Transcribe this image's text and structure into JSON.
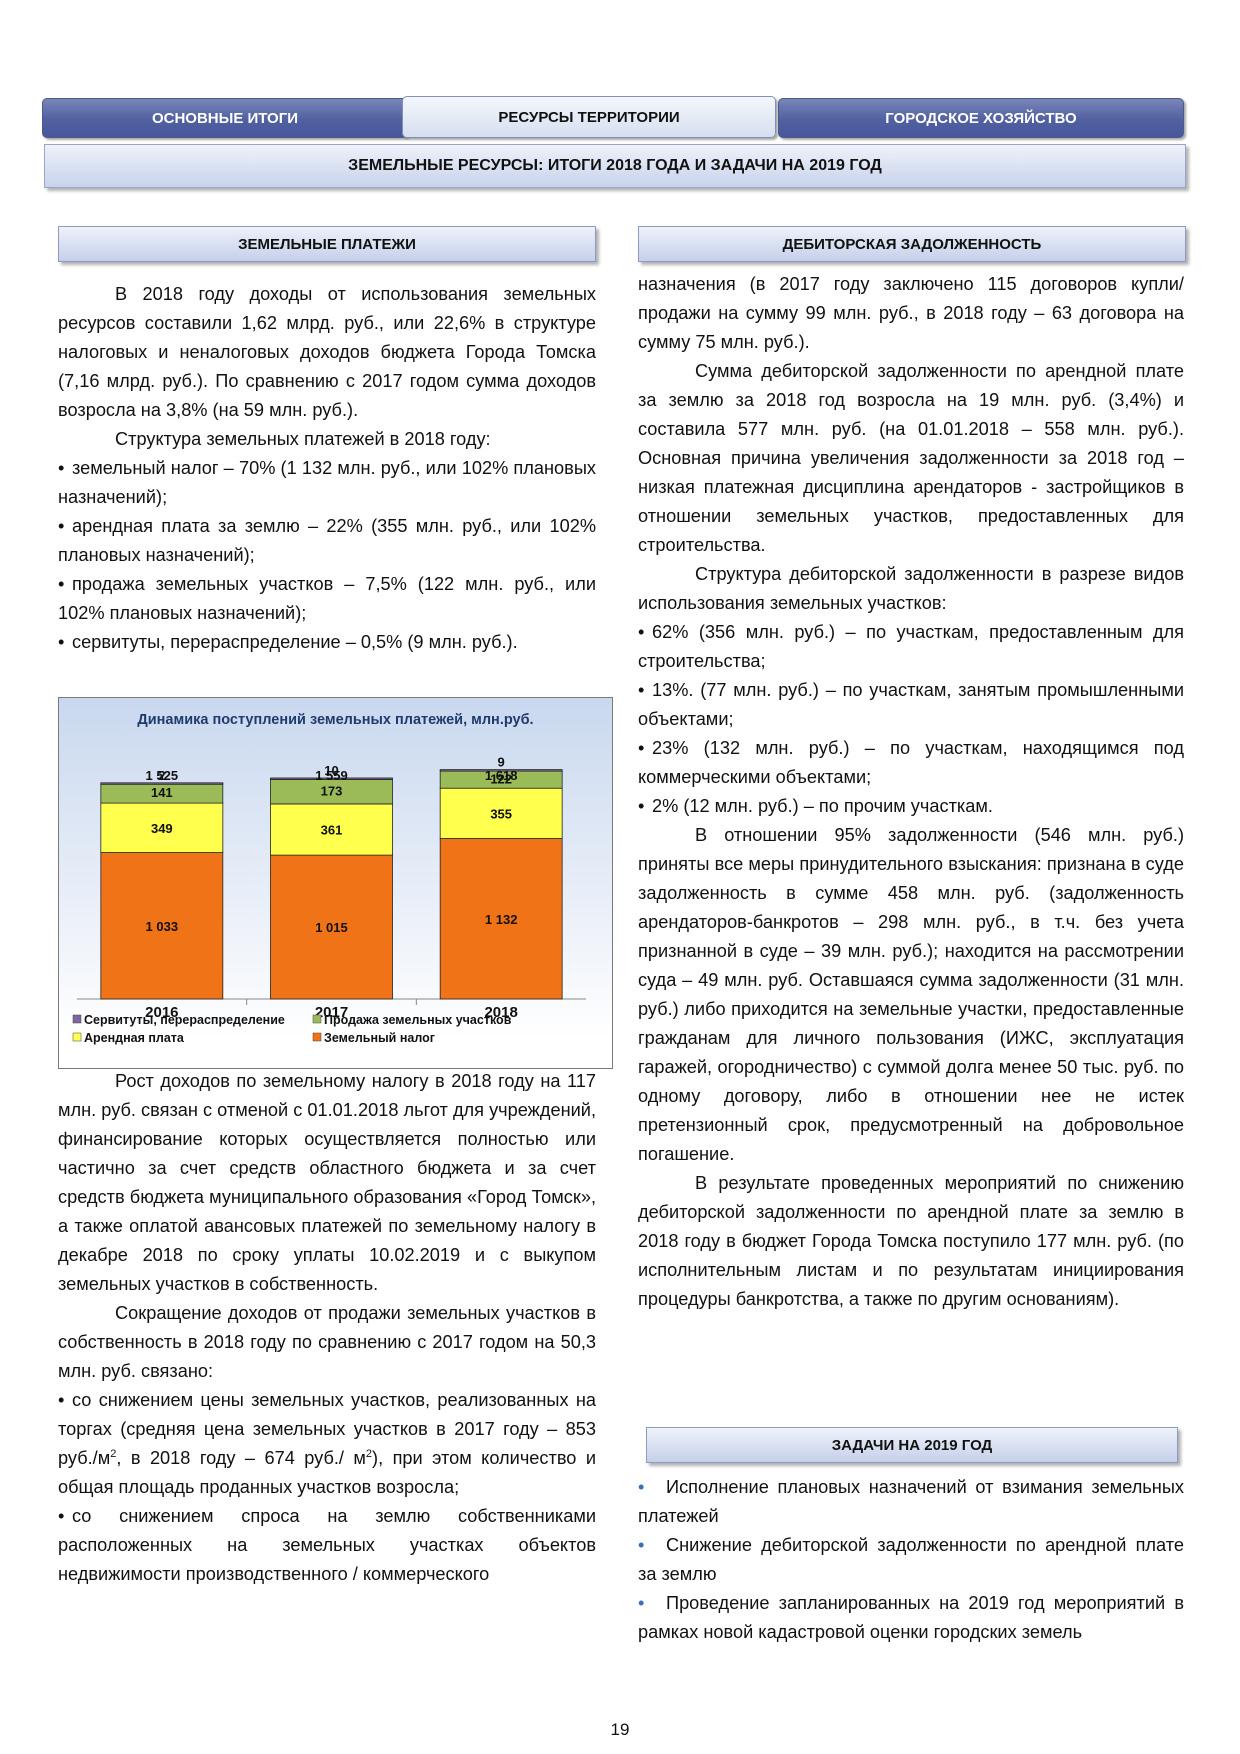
{
  "tabs": [
    "ОСНОВНЫЕ ИТОГИ",
    "РЕСУРСЫ ТЕРРИТОРИИ",
    "ГОРОДСКОЕ ХОЗЯЙСТВО"
  ],
  "page_title": "ЗЕМЕЛЬНЫЕ РЕСУРСЫ: ИТОГИ 2018 ГОДА И ЗАДАЧИ НА 2019 ГОД",
  "left": {
    "section_title": "ЗЕМЕЛЬНЫЕ ПЛАТЕЖИ",
    "p1": "В 2018 году доходы от использования земельных ресурсов составили 1,62 млрд. руб., или 22,6% в структуре налоговых и неналоговых доходов бюджета Города Томска (7,16 млрд. руб.). По сравнению с 2017 годом сумма доходов возросла на 3,8% (на 59 млн. руб.).",
    "p2": "Структура земельных платежей в 2018 году:",
    "bullets": [
      "земельный налог – 70% (1 132 млн. руб., или 102% плановых назначений);",
      "арендная плата за землю – 22% (355 млн. руб., или 102% плановых назначений);",
      "продажа земельных участков – 7,5% (122 млн. руб., или 102% плановых назначений);",
      "сервитуты, перераспределение – 0,5% (9 млн. руб.)."
    ],
    "p3": "Рост доходов по земельному налогу в 2018 году на 117 млн. руб. связан с отменой с 01.01.2018 льгот для учреждений, финансирование которых осуществляется полностью или частично за счет средств областного бюджета и за счет средств бюджета муниципального образования «Город Томск», а также оплатой авансовых платежей по земельному налогу в декабре 2018 по сроку уплаты 10.02.2019 и с выкупом земельных участков в собственность.",
    "p4": "Сокращение доходов от продажи земельных участков в собственность в 2018 году по сравнению с 2017 годом на 50,3 млн. руб. связано:",
    "bullets2_a1": "со снижением цены земельных участков, реализованных на торгах (средняя цена земельных участков в 2017 году – 853 руб./м",
    "bullets2_a2": ", в 2018 году – 674 руб./ м",
    "bullets2_a3": "), при этом количество и общая площадь проданных участков возросла;",
    "sup": "2",
    "bullets2_b": "со снижением спроса на землю собственниками расположенных на земельных участках объектов недвижимости производственного / коммерческого"
  },
  "right": {
    "section_title": "ДЕБИТОРСКАЯ ЗАДОЛЖЕННОСТЬ",
    "p0": "назначения (в 2017 году заключено 115 договоров купли/продажи на сумму 99 млн. руб., в 2018 году – 63 договора на сумму 75 млн. руб.).",
    "p1": "Сумма дебиторской задолженности по арендной плате за землю за 2018 год возросла на 19 млн. руб. (3,4%) и составила 577 млн. руб. (на 01.01.2018 – 558 млн. руб.). Основная причина увеличения задолженности за 2018 год – низкая платежная дисциплина арендаторов - застройщиков в отношении земельных участков, предоставленных для строительства.",
    "p2": "Структура дебиторской задолженности в разрезе видов использования земельных участков:",
    "bullets": [
      "62% (356 млн. руб.) – по участкам, предоставленным для строительства;",
      "13%. (77 млн. руб.) – по участкам, занятым промышленными объектами;",
      "23% (132 млн. руб.) – по участкам, находящимся под коммерческими объектами;",
      "2% (12 млн. руб.) – по прочим участкам."
    ],
    "p3": "В отношении 95% задолженности (546 млн. руб.) приняты все меры принудительного взыскания: признана в суде задолженность в сумме 458 млн. руб. (задолженность арендаторов-банкротов – 298 млн. руб., в т.ч. без учета признанной в суде – 39 млн. руб.); находится на рассмотрении суда – 49 млн. руб. Оставшаяся сумма задолженности (31 млн. руб.) либо приходится на земельные участки, предоставленные гражданам для личного пользования (ИЖС, эксплуатация гаражей, огородничество) с суммой долга менее 50 тыс. руб. по одному договору, либо в отношении нее не истек претензионный срок, предусмотренный на добровольное погашение.",
    "p4": "В результате проведенных мероприятий по снижению дебиторской задолженности по арендной плате за землю в 2018 году в бюджет Города Томска поступило 177 млн. руб. (по исполнительным листам и по результатам инициирования процедуры банкротства, а также по другим основаниям).",
    "tasks_title": "ЗАДАЧИ НА 2019 ГОД",
    "tasks": [
      "Исполнение плановых назначений от взимания земельных платежей",
      "Снижение дебиторской задолженности по арендной плате за землю",
      "Проведение запланированных на 2019 год мероприятий в рамках новой кадастровой оценки городских земель"
    ]
  },
  "page_number": "19",
  "chart_data": {
    "type": "bar",
    "stacked": true,
    "title": "Динамика поступлений земельных платежей, млн.руб.",
    "categories": [
      "2016",
      "2017",
      "2018"
    ],
    "totals": [
      "1 525",
      "1 559",
      "1 618"
    ],
    "series": [
      {
        "name": "Земельный налог",
        "color": "#f07417",
        "values": [
          1033,
          1015,
          1132
        ],
        "labels": [
          "1 033",
          "1 015",
          "1 132"
        ]
      },
      {
        "name": "Арендная плата",
        "color": "#ffff4d",
        "values": [
          349,
          361,
          355
        ],
        "labels": [
          "349",
          "361",
          "355"
        ]
      },
      {
        "name": "Продажа земельных участков",
        "color": "#9bbb59",
        "values": [
          141,
          173,
          122
        ],
        "labels": [
          "141",
          "173",
          "122"
        ]
      },
      {
        "name": "Сервитуты, перераспределение",
        "color": "#8064a2",
        "values": [
          2,
          10,
          9
        ],
        "labels": [
          "2",
          "10",
          "9"
        ]
      }
    ],
    "legend_order": [
      "Сервитуты, перераспределение",
      "Продажа земельных участков",
      "Арендная плата",
      "Земельный налог"
    ],
    "ylim": [
      0,
      1700
    ]
  }
}
